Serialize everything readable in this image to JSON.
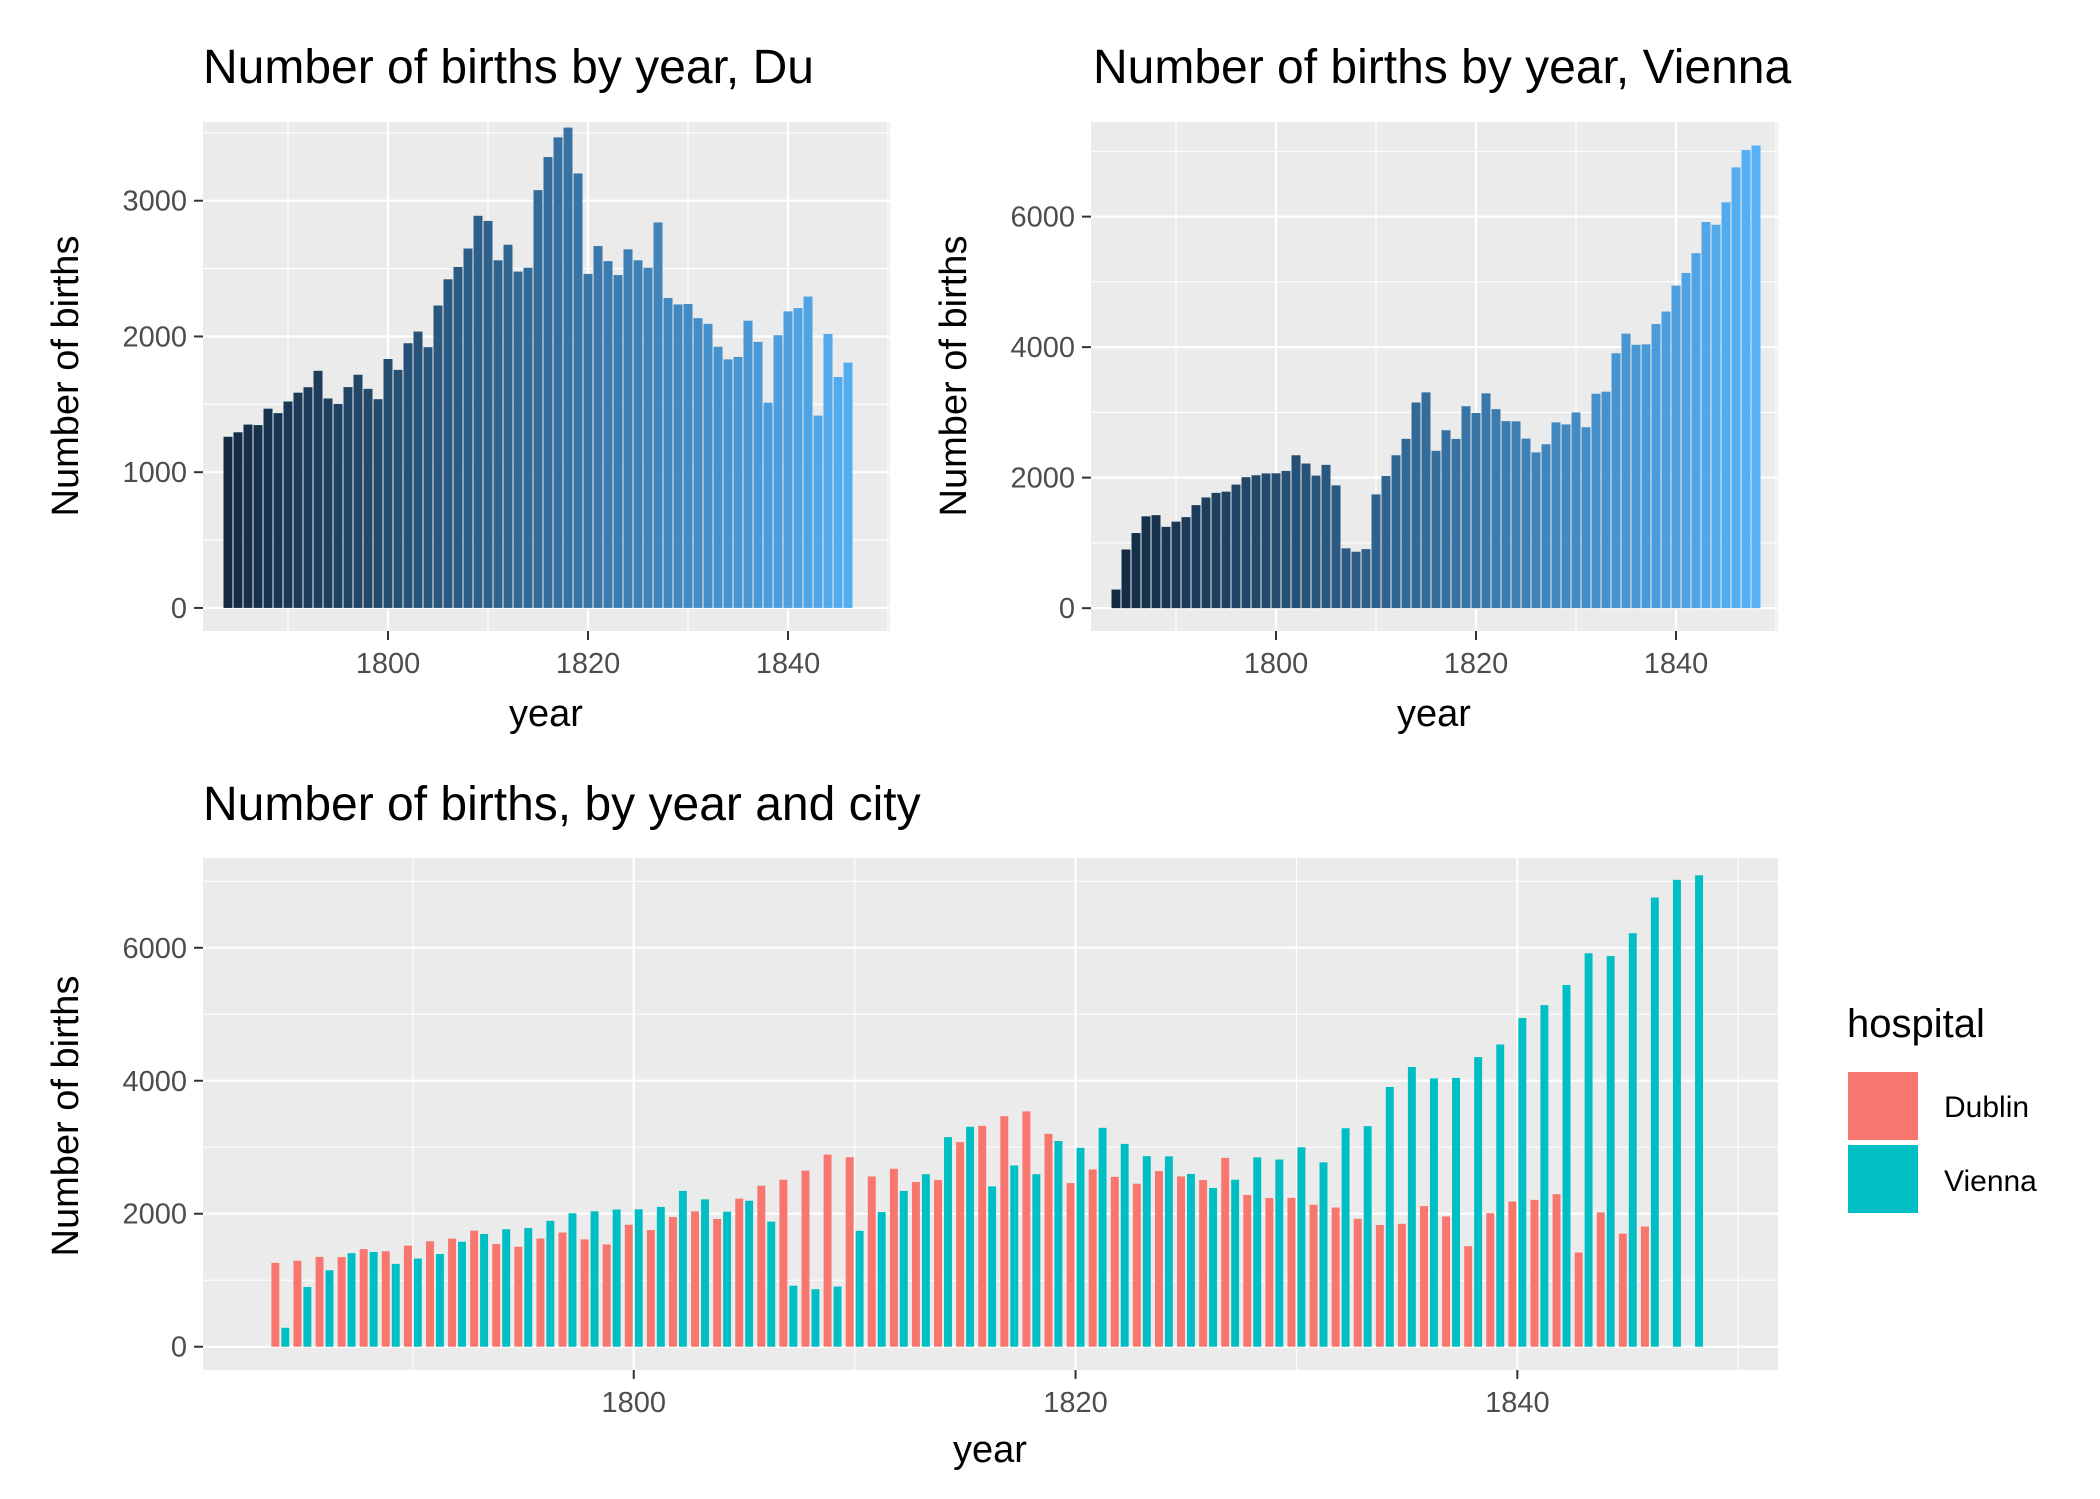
{
  "chart_data": [
    {
      "type": "bar",
      "title": "Number of births by year, Du",
      "xlabel": "year",
      "ylabel": "Number of births",
      "xlim": [
        1781.5,
        1850.2
      ],
      "ylim": [
        -170,
        3580
      ],
      "x_ticks": [
        1800,
        1820,
        1840
      ],
      "x_tick_labels": [
        "1800",
        "1820",
        "1840"
      ],
      "y_ticks": [
        0,
        1000,
        2000,
        3000
      ],
      "y_tick_labels": [
        "0",
        "1000",
        "2000",
        "3000"
      ],
      "grid": true,
      "fill_gradient": [
        "#132b43",
        "#56b1f7"
      ],
      "x": [
        1784,
        1785,
        1786,
        1787,
        1788,
        1789,
        1790,
        1791,
        1792,
        1793,
        1794,
        1795,
        1796,
        1797,
        1798,
        1799,
        1800,
        1801,
        1802,
        1803,
        1804,
        1805,
        1806,
        1807,
        1808,
        1809,
        1810,
        1811,
        1812,
        1813,
        1814,
        1815,
        1816,
        1817,
        1818,
        1819,
        1820,
        1821,
        1822,
        1823,
        1824,
        1825,
        1826,
        1827,
        1828,
        1829,
        1830,
        1831,
        1832,
        1833,
        1834,
        1835,
        1836,
        1837,
        1838,
        1839,
        1840,
        1841,
        1842,
        1843,
        1844,
        1845,
        1846,
        1847,
        1848
      ],
      "values": [
        1261,
        1294,
        1351,
        1347,
        1468,
        1435,
        1521,
        1586,
        1626,
        1747,
        1543,
        1503,
        1627,
        1718,
        1614,
        1538,
        1834,
        1754,
        1950,
        2036,
        1921,
        2228,
        2421,
        2512,
        2648,
        2889,
        2851,
        2561,
        2676,
        2478,
        2506,
        3078,
        3322,
        3467,
        3539,
        3201,
        2461,
        2666,
        2555,
        2452,
        2642,
        2561,
        2506,
        2840,
        2283,
        2236,
        2239,
        2135,
        2093,
        1924,
        1831,
        1849,
        2116,
        1960,
        1512,
        2009,
        2185,
        2209,
        2294,
        1417,
        2019,
        1701,
        1807,
        0,
        0
      ]
    },
    {
      "type": "bar",
      "title": "Number of births by year, Vienna",
      "xlabel": "year",
      "ylabel": "Number of births",
      "xlim": [
        1781.5,
        1850.2
      ],
      "ylim": [
        -350,
        7450
      ],
      "x_ticks": [
        1800,
        1820,
        1840
      ],
      "x_tick_labels": [
        "1800",
        "1820",
        "1840"
      ],
      "y_ticks": [
        0,
        2000,
        4000,
        6000
      ],
      "y_tick_labels": [
        "0",
        "2000",
        "4000",
        "6000"
      ],
      "grid": true,
      "fill_gradient": [
        "#132b43",
        "#56b1f7"
      ],
      "x": [
        1784,
        1785,
        1786,
        1787,
        1788,
        1789,
        1790,
        1791,
        1792,
        1793,
        1794,
        1795,
        1796,
        1797,
        1798,
        1799,
        1800,
        1801,
        1802,
        1803,
        1804,
        1805,
        1806,
        1807,
        1808,
        1809,
        1810,
        1811,
        1812,
        1813,
        1814,
        1815,
        1816,
        1817,
        1818,
        1819,
        1820,
        1821,
        1822,
        1823,
        1824,
        1825,
        1826,
        1827,
        1828,
        1829,
        1830,
        1831,
        1832,
        1833,
        1834,
        1835,
        1836,
        1837,
        1838,
        1839,
        1840,
        1841,
        1842,
        1843,
        1844,
        1845,
        1846,
        1847,
        1848
      ],
      "values": [
        285,
        899,
        1151,
        1407,
        1425,
        1246,
        1326,
        1395,
        1579,
        1696,
        1767,
        1785,
        1893,
        2007,
        2037,
        2064,
        2067,
        2103,
        2343,
        2216,
        2031,
        2196,
        1881,
        917,
        865,
        905,
        1743,
        2025,
        2343,
        2595,
        3152,
        3307,
        2411,
        2726,
        2594,
        3094,
        2992,
        3292,
        3050,
        2866,
        2863,
        2598,
        2387,
        2512,
        2847,
        2816,
        2999,
        2773,
        3286,
        3317,
        3906,
        4207,
        4036,
        4043,
        4356,
        4545,
        4944,
        5137,
        5440,
        5917,
        5876,
        6219,
        6755,
        7022,
        7090
      ]
    },
    {
      "type": "bar",
      "title": "Number of births, by year and city",
      "xlabel": "year",
      "ylabel": "Number of births",
      "xlim": [
        1780.5,
        1851.8
      ],
      "ylim": [
        -350,
        7350
      ],
      "x_ticks": [
        1800,
        1820,
        1840
      ],
      "x_tick_labels": [
        "1800",
        "1820",
        "1840"
      ],
      "y_ticks": [
        0,
        2000,
        4000,
        6000
      ],
      "y_tick_labels": [
        "0",
        "2000",
        "4000",
        "6000"
      ],
      "grid": true,
      "legend": "right",
      "legend_title": "hospital",
      "x": [
        1784,
        1785,
        1786,
        1787,
        1788,
        1789,
        1790,
        1791,
        1792,
        1793,
        1794,
        1795,
        1796,
        1797,
        1798,
        1799,
        1800,
        1801,
        1802,
        1803,
        1804,
        1805,
        1806,
        1807,
        1808,
        1809,
        1810,
        1811,
        1812,
        1813,
        1814,
        1815,
        1816,
        1817,
        1818,
        1819,
        1820,
        1821,
        1822,
        1823,
        1824,
        1825,
        1826,
        1827,
        1828,
        1829,
        1830,
        1831,
        1832,
        1833,
        1834,
        1835,
        1836,
        1837,
        1838,
        1839,
        1840,
        1841,
        1842,
        1843,
        1844,
        1845,
        1846,
        1847,
        1848
      ],
      "series": [
        {
          "name": "Dublin",
          "color": "#f8766d",
          "values": [
            1261,
            1294,
            1351,
            1347,
            1468,
            1435,
            1521,
            1586,
            1626,
            1747,
            1543,
            1503,
            1627,
            1718,
            1614,
            1538,
            1834,
            1754,
            1950,
            2036,
            1921,
            2228,
            2421,
            2512,
            2648,
            2889,
            2851,
            2561,
            2676,
            2478,
            2506,
            3078,
            3322,
            3467,
            3539,
            3201,
            2461,
            2666,
            2555,
            2452,
            2642,
            2561,
            2506,
            2840,
            2283,
            2236,
            2239,
            2135,
            2093,
            1924,
            1831,
            1849,
            2116,
            1960,
            1512,
            2009,
            2185,
            2209,
            2294,
            1417,
            2019,
            1701,
            1807,
            0,
            0
          ]
        },
        {
          "name": "Vienna",
          "color": "#00bfc4",
          "values": [
            285,
            899,
            1151,
            1407,
            1425,
            1246,
            1326,
            1395,
            1579,
            1696,
            1767,
            1785,
            1893,
            2007,
            2037,
            2064,
            2067,
            2103,
            2343,
            2216,
            2031,
            2196,
            1881,
            917,
            865,
            905,
            1743,
            2025,
            2343,
            2595,
            3152,
            3307,
            2411,
            2726,
            2594,
            3094,
            2992,
            3292,
            3050,
            2866,
            2863,
            2598,
            2387,
            2512,
            2847,
            2816,
            2999,
            2773,
            3286,
            3317,
            3906,
            4207,
            4036,
            4043,
            4356,
            4545,
            4944,
            5137,
            5440,
            5917,
            5876,
            6219,
            6755,
            7022,
            7090
          ]
        }
      ]
    }
  ]
}
